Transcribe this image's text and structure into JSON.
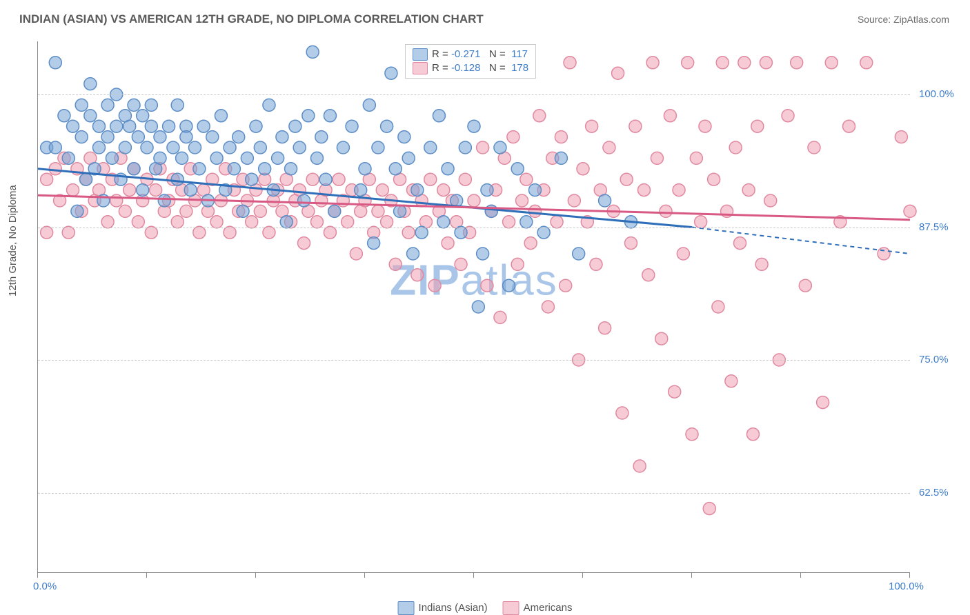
{
  "title": "INDIAN (ASIAN) VS AMERICAN 12TH GRADE, NO DIPLOMA CORRELATION CHART",
  "source": "Source: ZipAtlas.com",
  "watermark": "ZIPatlas",
  "ylabel": "12th Grade, No Diploma",
  "chart": {
    "type": "scatter",
    "background_color": "#ffffff",
    "grid_color": "#c8c8c8",
    "axis_color": "#8a8a8a",
    "label_color": "#3d7cc9",
    "marker_radius": 9,
    "marker_opacity": 0.55,
    "marker_stroke_width": 1.5,
    "xlim": [
      0,
      100
    ],
    "ylim": [
      55,
      105
    ],
    "xticks": [
      0,
      12.5,
      25,
      37.5,
      50,
      62.5,
      75,
      87.5,
      100
    ],
    "xtick_labels": {
      "0": "0.0%",
      "100": "100.0%"
    },
    "yticks": [
      62.5,
      75,
      87.5,
      100
    ],
    "ytick_labels": {
      "62.5": "62.5%",
      "75": "75.0%",
      "87.5": "87.5%",
      "100": "100.0%"
    },
    "series": [
      {
        "name": "Indians (Asian)",
        "color_fill": "rgba(116,162,214,0.55)",
        "color_stroke": "#5c8dc6",
        "trend_color": "#2f6fb9",
        "trend_width": 3,
        "r": "-0.271",
        "n": "117",
        "trend": {
          "x1": 0,
          "y1": 93,
          "x2": 75,
          "y2": 87.5,
          "x2_dash": 100,
          "y2_dash": 85
        },
        "points": [
          [
            1,
            95
          ],
          [
            2,
            103
          ],
          [
            2,
            95
          ],
          [
            3,
            98
          ],
          [
            3.5,
            94
          ],
          [
            4,
            97
          ],
          [
            4.5,
            89
          ],
          [
            5,
            96
          ],
          [
            5,
            99
          ],
          [
            5.5,
            92
          ],
          [
            6,
            98
          ],
          [
            6,
            101
          ],
          [
            6.5,
            93
          ],
          [
            7,
            95
          ],
          [
            7,
            97
          ],
          [
            7.5,
            90
          ],
          [
            8,
            96
          ],
          [
            8,
            99
          ],
          [
            8.5,
            94
          ],
          [
            9,
            97
          ],
          [
            9,
            100
          ],
          [
            9.5,
            92
          ],
          [
            10,
            98
          ],
          [
            10,
            95
          ],
          [
            10.5,
            97
          ],
          [
            11,
            99
          ],
          [
            11,
            93
          ],
          [
            11.5,
            96
          ],
          [
            12,
            98
          ],
          [
            12,
            91
          ],
          [
            12.5,
            95
          ],
          [
            13,
            97
          ],
          [
            13,
            99
          ],
          [
            13.5,
            93
          ],
          [
            14,
            94
          ],
          [
            14,
            96
          ],
          [
            14.5,
            90
          ],
          [
            15,
            97
          ],
          [
            15.5,
            95
          ],
          [
            16,
            99
          ],
          [
            16,
            92
          ],
          [
            16.5,
            94
          ],
          [
            17,
            97
          ],
          [
            17,
            96
          ],
          [
            17.5,
            91
          ],
          [
            18,
            95
          ],
          [
            18.5,
            93
          ],
          [
            19,
            97
          ],
          [
            19.5,
            90
          ],
          [
            20,
            96
          ],
          [
            20.5,
            94
          ],
          [
            21,
            98
          ],
          [
            21.5,
            91
          ],
          [
            22,
            95
          ],
          [
            22.5,
            93
          ],
          [
            23,
            96
          ],
          [
            23.5,
            89
          ],
          [
            24,
            94
          ],
          [
            24.5,
            92
          ],
          [
            25,
            97
          ],
          [
            25.5,
            95
          ],
          [
            26,
            93
          ],
          [
            26.5,
            99
          ],
          [
            27,
            91
          ],
          [
            27.5,
            94
          ],
          [
            28,
            96
          ],
          [
            28.5,
            88
          ],
          [
            29,
            93
          ],
          [
            29.5,
            97
          ],
          [
            30,
            95
          ],
          [
            30.5,
            90
          ],
          [
            31,
            98
          ],
          [
            31.5,
            104
          ],
          [
            32,
            94
          ],
          [
            32.5,
            96
          ],
          [
            33,
            92
          ],
          [
            33.5,
            98
          ],
          [
            34,
            89
          ],
          [
            35,
            95
          ],
          [
            36,
            97
          ],
          [
            37,
            91
          ],
          [
            37.5,
            93
          ],
          [
            38,
            99
          ],
          [
            38.5,
            86
          ],
          [
            39,
            95
          ],
          [
            40,
            97
          ],
          [
            40.5,
            102
          ],
          [
            41,
            93
          ],
          [
            41.5,
            89
          ],
          [
            42,
            96
          ],
          [
            42.5,
            94
          ],
          [
            43,
            85
          ],
          [
            43.5,
            91
          ],
          [
            44,
            87
          ],
          [
            45,
            95
          ],
          [
            45.5,
            104
          ],
          [
            46,
            98
          ],
          [
            46.5,
            88
          ],
          [
            47,
            93
          ],
          [
            48,
            90
          ],
          [
            48.5,
            87
          ],
          [
            49,
            95
          ],
          [
            50,
            97
          ],
          [
            50.5,
            80
          ],
          [
            51,
            85
          ],
          [
            51.5,
            91
          ],
          [
            52,
            89
          ],
          [
            53,
            95
          ],
          [
            54,
            82
          ],
          [
            55,
            93
          ],
          [
            56,
            88
          ],
          [
            57,
            91
          ],
          [
            58,
            87
          ],
          [
            60,
            94
          ],
          [
            62,
            85
          ],
          [
            65,
            90
          ],
          [
            68,
            88
          ]
        ]
      },
      {
        "name": "Americans",
        "color_fill": "rgba(238,160,178,0.55)",
        "color_stroke": "#e089a0",
        "trend_color": "#d85a84",
        "trend_width": 3,
        "r": "-0.128",
        "n": "178",
        "trend": {
          "x1": 0,
          "y1": 90.5,
          "x2": 100,
          "y2": 88.2
        },
        "points": [
          [
            1,
            92
          ],
          [
            1,
            87
          ],
          [
            2,
            93
          ],
          [
            2.5,
            90
          ],
          [
            3,
            94
          ],
          [
            3.5,
            87
          ],
          [
            4,
            91
          ],
          [
            4.5,
            93
          ],
          [
            5,
            89
          ],
          [
            5.5,
            92
          ],
          [
            6,
            94
          ],
          [
            6.5,
            90
          ],
          [
            7,
            91
          ],
          [
            7.5,
            93
          ],
          [
            8,
            88
          ],
          [
            8.5,
            92
          ],
          [
            9,
            90
          ],
          [
            9.5,
            94
          ],
          [
            10,
            89
          ],
          [
            10.5,
            91
          ],
          [
            11,
            93
          ],
          [
            11.5,
            88
          ],
          [
            12,
            90
          ],
          [
            12.5,
            92
          ],
          [
            13,
            87
          ],
          [
            13.5,
            91
          ],
          [
            14,
            93
          ],
          [
            14.5,
            89
          ],
          [
            15,
            90
          ],
          [
            15.5,
            92
          ],
          [
            16,
            88
          ],
          [
            16.5,
            91
          ],
          [
            17,
            89
          ],
          [
            17.5,
            93
          ],
          [
            18,
            90
          ],
          [
            18.5,
            87
          ],
          [
            19,
            91
          ],
          [
            19.5,
            89
          ],
          [
            20,
            92
          ],
          [
            20.5,
            88
          ],
          [
            21,
            90
          ],
          [
            21.5,
            93
          ],
          [
            22,
            87
          ],
          [
            22.5,
            91
          ],
          [
            23,
            89
          ],
          [
            23.5,
            92
          ],
          [
            24,
            90
          ],
          [
            24.5,
            88
          ],
          [
            25,
            91
          ],
          [
            25.5,
            89
          ],
          [
            26,
            92
          ],
          [
            26.5,
            87
          ],
          [
            27,
            90
          ],
          [
            27.5,
            91
          ],
          [
            28,
            89
          ],
          [
            28.5,
            92
          ],
          [
            29,
            88
          ],
          [
            29.5,
            90
          ],
          [
            30,
            91
          ],
          [
            30.5,
            86
          ],
          [
            31,
            89
          ],
          [
            31.5,
            92
          ],
          [
            32,
            88
          ],
          [
            32.5,
            90
          ],
          [
            33,
            91
          ],
          [
            33.5,
            87
          ],
          [
            34,
            89
          ],
          [
            34.5,
            92
          ],
          [
            35,
            90
          ],
          [
            35.5,
            88
          ],
          [
            36,
            91
          ],
          [
            36.5,
            85
          ],
          [
            37,
            89
          ],
          [
            37.5,
            90
          ],
          [
            38,
            92
          ],
          [
            38.5,
            87
          ],
          [
            39,
            89
          ],
          [
            39.5,
            91
          ],
          [
            40,
            88
          ],
          [
            40.5,
            90
          ],
          [
            41,
            84
          ],
          [
            41.5,
            92
          ],
          [
            42,
            89
          ],
          [
            42.5,
            87
          ],
          [
            43,
            91
          ],
          [
            43.5,
            83
          ],
          [
            44,
            90
          ],
          [
            44.5,
            88
          ],
          [
            45,
            92
          ],
          [
            45.5,
            82
          ],
          [
            46,
            89
          ],
          [
            46.5,
            91
          ],
          [
            47,
            86
          ],
          [
            47.5,
            90
          ],
          [
            48,
            88
          ],
          [
            48.5,
            84
          ],
          [
            49,
            92
          ],
          [
            49.5,
            87
          ],
          [
            50,
            90
          ],
          [
            50.5,
            103
          ],
          [
            51,
            95
          ],
          [
            51.5,
            82
          ],
          [
            52,
            89
          ],
          [
            52.5,
            91
          ],
          [
            53,
            79
          ],
          [
            53.5,
            94
          ],
          [
            54,
            88
          ],
          [
            54.5,
            96
          ],
          [
            55,
            84
          ],
          [
            55.5,
            90
          ],
          [
            56,
            92
          ],
          [
            56.5,
            86
          ],
          [
            57,
            89
          ],
          [
            57.5,
            98
          ],
          [
            58,
            91
          ],
          [
            58.5,
            80
          ],
          [
            59,
            94
          ],
          [
            59.5,
            88
          ],
          [
            60,
            96
          ],
          [
            60.5,
            82
          ],
          [
            61,
            103
          ],
          [
            61.5,
            90
          ],
          [
            62,
            75
          ],
          [
            62.5,
            93
          ],
          [
            63,
            88
          ],
          [
            63.5,
            97
          ],
          [
            64,
            84
          ],
          [
            64.5,
            91
          ],
          [
            65,
            78
          ],
          [
            65.5,
            95
          ],
          [
            66,
            89
          ],
          [
            66.5,
            102
          ],
          [
            67,
            70
          ],
          [
            67.5,
            92
          ],
          [
            68,
            86
          ],
          [
            68.5,
            97
          ],
          [
            69,
            65
          ],
          [
            69.5,
            91
          ],
          [
            70,
            83
          ],
          [
            70.5,
            103
          ],
          [
            71,
            94
          ],
          [
            71.5,
            77
          ],
          [
            72,
            89
          ],
          [
            72.5,
            98
          ],
          [
            73,
            72
          ],
          [
            73.5,
            91
          ],
          [
            74,
            85
          ],
          [
            74.5,
            103
          ],
          [
            75,
            68
          ],
          [
            75.5,
            94
          ],
          [
            76,
            88
          ],
          [
            76.5,
            97
          ],
          [
            77,
            61
          ],
          [
            77.5,
            92
          ],
          [
            78,
            80
          ],
          [
            78.5,
            103
          ],
          [
            79,
            89
          ],
          [
            79.5,
            73
          ],
          [
            80,
            95
          ],
          [
            80.5,
            86
          ],
          [
            81,
            103
          ],
          [
            81.5,
            91
          ],
          [
            82,
            68
          ],
          [
            82.5,
            97
          ],
          [
            83,
            84
          ],
          [
            83.5,
            103
          ],
          [
            84,
            90
          ],
          [
            85,
            75
          ],
          [
            86,
            98
          ],
          [
            87,
            103
          ],
          [
            88,
            82
          ],
          [
            89,
            95
          ],
          [
            90,
            71
          ],
          [
            91,
            103
          ],
          [
            92,
            88
          ],
          [
            93,
            97
          ],
          [
            95,
            103
          ],
          [
            97,
            85
          ],
          [
            99,
            96
          ],
          [
            100,
            89
          ]
        ]
      }
    ]
  }
}
